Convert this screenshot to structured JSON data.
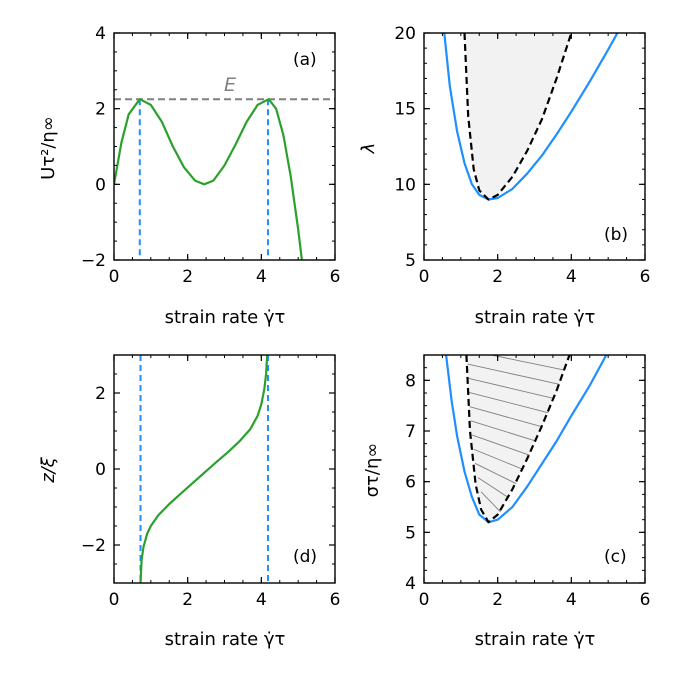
{
  "chart_data": [
    {
      "panel": "(a)",
      "type": "line",
      "xlabel": "strain rate γ̇τ",
      "ylabel": "Uτ²/η∞",
      "xlim": [
        0,
        6
      ],
      "ylim": [
        -2,
        4
      ],
      "xticks": [
        0,
        2,
        4,
        6
      ],
      "yticks": [
        -2,
        0,
        2,
        4
      ],
      "x_tick_labels": [
        "0",
        "2",
        "4",
        "6"
      ],
      "y_tick_labels": [
        "−2",
        "0",
        "2",
        "4"
      ],
      "annotation": "E",
      "colors": {
        "curve": "#2ca02c",
        "dashed_vertical": "#1f8fff",
        "dashed_horizontal": "#808080"
      },
      "series": [
        {
          "name": "U",
          "x": [
            0,
            0.2,
            0.4,
            0.7,
            1.0,
            1.3,
            1.6,
            1.9,
            2.2,
            2.45,
            2.7,
            3.0,
            3.3,
            3.6,
            3.9,
            4.2,
            4.4,
            4.6,
            4.8,
            5.0,
            5.1
          ],
          "y": [
            0.0,
            1.1,
            1.85,
            2.25,
            2.1,
            1.65,
            1.0,
            0.45,
            0.1,
            0.0,
            0.1,
            0.5,
            1.05,
            1.65,
            2.1,
            2.25,
            2.0,
            1.3,
            0.2,
            -1.2,
            -2.0
          ]
        }
      ],
      "hlines": [
        {
          "y": 2.25,
          "name": "E"
        }
      ],
      "vlines": [
        {
          "x": 0.7
        },
        {
          "x": 4.18
        }
      ]
    },
    {
      "panel": "(b)",
      "type": "line",
      "xlabel": "strain rate γ̇τ",
      "ylabel": "λ",
      "xlim": [
        0,
        6
      ],
      "ylim": [
        5,
        20
      ],
      "xticks": [
        0,
        2,
        4,
        6
      ],
      "yticks": [
        5,
        10,
        15,
        20
      ],
      "x_tick_labels": [
        "0",
        "2",
        "4",
        "6"
      ],
      "y_tick_labels": [
        "5",
        "10",
        "15",
        "20"
      ],
      "colors": {
        "outer": "#1f8fff",
        "inner": "#000000",
        "fill": "#f2f2f2"
      },
      "series": [
        {
          "name": "outer",
          "x": [
            0.55,
            0.7,
            0.9,
            1.1,
            1.3,
            1.5,
            1.75,
            2.0,
            2.4,
            2.8,
            3.2,
            3.6,
            4.0,
            4.5,
            5.0,
            5.25
          ],
          "y": [
            20,
            16.5,
            13.5,
            11.4,
            10.0,
            9.3,
            9.0,
            9.1,
            9.7,
            10.7,
            11.9,
            13.3,
            14.8,
            16.8,
            18.9,
            20
          ]
        },
        {
          "name": "inner",
          "x": [
            1.1,
            1.2,
            1.35,
            1.5,
            1.75,
            2.0,
            2.4,
            2.8,
            3.2,
            3.6,
            4.0
          ],
          "y": [
            20,
            14.5,
            11.0,
            9.6,
            9.0,
            9.3,
            10.5,
            12.2,
            14.3,
            17.0,
            20
          ]
        }
      ]
    },
    {
      "panel": "(d)",
      "type": "line",
      "xlabel": "strain rate γ̇τ",
      "ylabel": "z/ξ",
      "xlim": [
        0,
        6
      ],
      "ylim": [
        -3,
        3
      ],
      "xticks": [
        0,
        2,
        4,
        6
      ],
      "yticks": [
        -2,
        0,
        2
      ],
      "x_tick_labels": [
        "0",
        "2",
        "4",
        "6"
      ],
      "y_tick_labels": [
        "−2",
        "0",
        "2"
      ],
      "colors": {
        "curve": "#2ca02c",
        "dashed_vertical": "#1f8fff"
      },
      "series": [
        {
          "name": "z",
          "x": [
            0.72,
            0.75,
            0.8,
            0.9,
            1.0,
            1.2,
            1.5,
            1.8,
            2.1,
            2.45,
            2.8,
            3.1,
            3.4,
            3.7,
            3.9,
            4.0,
            4.08,
            4.13,
            4.16
          ],
          "y": [
            -3.0,
            -2.4,
            -2.05,
            -1.7,
            -1.5,
            -1.22,
            -0.92,
            -0.66,
            -0.4,
            -0.1,
            0.2,
            0.45,
            0.72,
            1.05,
            1.4,
            1.7,
            2.1,
            2.5,
            3.0
          ]
        }
      ],
      "vlines": [
        {
          "x": 0.72
        },
        {
          "x": 4.18
        }
      ]
    },
    {
      "panel": "(c)",
      "type": "line",
      "xlabel": "strain rate γ̇τ",
      "ylabel": "στ/η∞",
      "xlim": [
        0,
        6
      ],
      "ylim": [
        4,
        8.5
      ],
      "xticks": [
        0,
        2,
        4,
        6
      ],
      "yticks": [
        4,
        5,
        6,
        7,
        8
      ],
      "x_tick_labels": [
        "0",
        "2",
        "4",
        "6"
      ],
      "y_tick_labels": [
        "4",
        "5",
        "6",
        "7",
        "8"
      ],
      "colors": {
        "outer": "#1f8fff",
        "inner": "#000000",
        "fill": "#f2f2f2",
        "hatch": "#808080"
      },
      "series": [
        {
          "name": "outer",
          "x": [
            0.6,
            0.75,
            0.9,
            1.1,
            1.3,
            1.5,
            1.75,
            2.0,
            2.4,
            2.8,
            3.2,
            3.6,
            4.0,
            4.5,
            4.95
          ],
          "y": [
            8.5,
            7.6,
            6.9,
            6.2,
            5.7,
            5.35,
            5.2,
            5.25,
            5.5,
            5.9,
            6.35,
            6.8,
            7.3,
            7.9,
            8.5
          ]
        },
        {
          "name": "inner",
          "x": [
            1.15,
            1.25,
            1.4,
            1.55,
            1.75,
            2.0,
            2.4,
            2.8,
            3.2,
            3.6,
            3.95
          ],
          "y": [
            8.5,
            7.0,
            5.95,
            5.45,
            5.2,
            5.35,
            5.85,
            6.45,
            7.1,
            7.8,
            8.5
          ]
        }
      ]
    }
  ]
}
